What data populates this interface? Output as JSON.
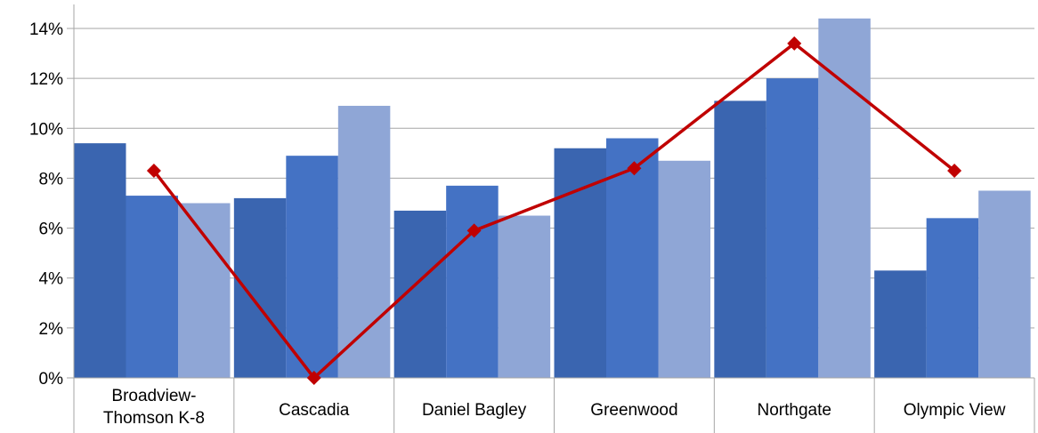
{
  "chart_data": {
    "type": "bar",
    "categories": [
      "Broadview-\nThomson K-8",
      "Cascadia",
      "Daniel Bagley",
      "Greenwood",
      "Northgate",
      "Olympic View"
    ],
    "series": [
      {
        "values": [
          9.4,
          7.2,
          6.7,
          9.2,
          11.1,
          4.3
        ],
        "color": "#3a65b0"
      },
      {
        "values": [
          7.3,
          8.9,
          7.7,
          9.6,
          12.0,
          6.4
        ],
        "color": "#4472c4"
      },
      {
        "values": [
          7.0,
          10.9,
          6.5,
          8.7,
          14.4,
          7.5
        ],
        "color": "#8fa6d6"
      }
    ],
    "line": {
      "values": [
        8.3,
        0.0,
        5.9,
        8.4,
        13.4,
        8.3
      ],
      "color": "#c00000",
      "marker": "diamond"
    },
    "yticks": [
      "0%",
      "2%",
      "4%",
      "6%",
      "8%",
      "10%",
      "12%",
      "14%"
    ],
    "ylim": [
      0,
      14.4
    ],
    "ytick_values": [
      0,
      2,
      4,
      6,
      8,
      10,
      12,
      14
    ],
    "grid": true,
    "title": "",
    "xlabel": "",
    "ylabel": ""
  }
}
